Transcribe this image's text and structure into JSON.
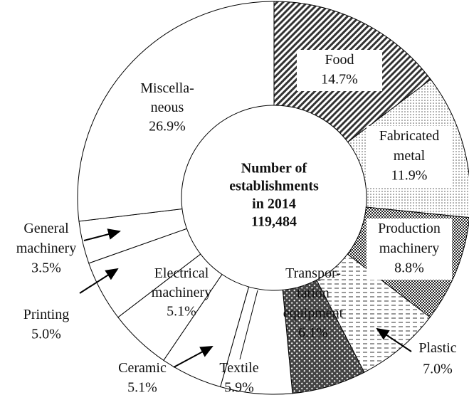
{
  "chart_data": {
    "type": "donut",
    "categories": [
      "Food",
      "Fabricated\nmetal",
      "Production\nmachinery",
      "Plastic",
      "Transpor-\ntation\nequipment",
      "Textile",
      "Ceramic",
      "Electrical\nmachinery",
      "Printing",
      "General\nmachinery",
      "Miscella-\nneous"
    ],
    "values": [
      14.7,
      11.9,
      8.8,
      7.0,
      6.1,
      5.9,
      5.1,
      5.1,
      5.0,
      3.5,
      26.9
    ],
    "value_labels": [
      "14.7%",
      "11.9%",
      "8.8%",
      "7.0%",
      "6.1%",
      "5.9%",
      "5.1%",
      "5.1%",
      "5.0%",
      "3.5%",
      "26.9%"
    ],
    "center_text": [
      "Number of",
      "establishments",
      "in 2014",
      "119,484"
    ]
  }
}
